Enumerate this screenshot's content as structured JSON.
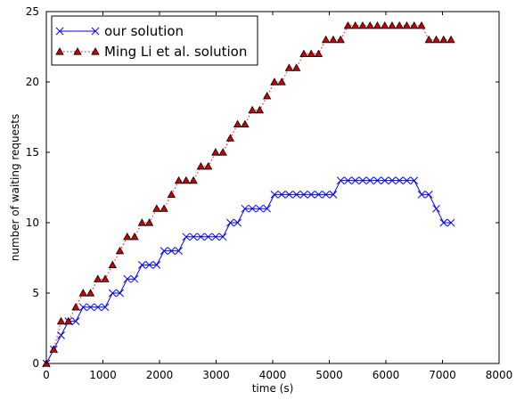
{
  "chart_data": {
    "type": "line",
    "xlabel": "time (s)",
    "ylabel": "number of waiting requests",
    "xlim": [
      0,
      8000
    ],
    "ylim": [
      0,
      25
    ],
    "xticks": [
      0,
      1000,
      2000,
      3000,
      4000,
      5000,
      6000,
      7000,
      8000
    ],
    "yticks": [
      0,
      5,
      10,
      15,
      20,
      25
    ],
    "grid": false,
    "legend_position": "top-left",
    "series": [
      {
        "name": "our solution",
        "color": "#0000ff",
        "line_style": "solid",
        "marker": "x",
        "x": [
          0,
          130,
          260,
          390,
          520,
          650,
          780,
          910,
          1040,
          1170,
          1300,
          1430,
          1560,
          1690,
          1820,
          1950,
          2080,
          2210,
          2340,
          2470,
          2600,
          2730,
          2860,
          2990,
          3120,
          3250,
          3380,
          3510,
          3640,
          3770,
          3900,
          4030,
          4160,
          4290,
          4420,
          4550,
          4680,
          4810,
          4940,
          5070,
          5200,
          5330,
          5460,
          5590,
          5720,
          5850,
          5980,
          6110,
          6240,
          6370,
          6500,
          6630,
          6760,
          6890,
          7020,
          7150
        ],
        "y": [
          0,
          1,
          2,
          3,
          3,
          4,
          4,
          4,
          4,
          5,
          5,
          6,
          6,
          7,
          7,
          7,
          8,
          8,
          8,
          9,
          9,
          9,
          9,
          9,
          9,
          10,
          10,
          11,
          11,
          11,
          11,
          12,
          12,
          12,
          12,
          12,
          12,
          12,
          12,
          12,
          13,
          13,
          13,
          13,
          13,
          13,
          13,
          13,
          13,
          13,
          13,
          12,
          12,
          11,
          10,
          10
        ]
      },
      {
        "name": "Ming Li et al. solution",
        "color": "#ff0000",
        "marker_fill": "#cc0000",
        "line_style": "dotted",
        "marker": "triangle",
        "x": [
          0,
          130,
          260,
          390,
          520,
          650,
          780,
          910,
          1040,
          1170,
          1300,
          1430,
          1560,
          1690,
          1820,
          1950,
          2080,
          2210,
          2340,
          2470,
          2600,
          2730,
          2860,
          2990,
          3120,
          3250,
          3380,
          3510,
          3640,
          3770,
          3900,
          4030,
          4160,
          4290,
          4420,
          4550,
          4680,
          4810,
          4940,
          5070,
          5200,
          5330,
          5460,
          5590,
          5720,
          5850,
          5980,
          6110,
          6240,
          6370,
          6500,
          6630,
          6760,
          6890,
          7020,
          7150
        ],
        "y": [
          0,
          1,
          3,
          3,
          4,
          5,
          5,
          6,
          6,
          7,
          8,
          9,
          9,
          10,
          10,
          11,
          11,
          12,
          13,
          13,
          13,
          14,
          14,
          15,
          15,
          16,
          17,
          17,
          18,
          18,
          19,
          20,
          20,
          21,
          21,
          22,
          22,
          22,
          23,
          23,
          23,
          24,
          24,
          24,
          24,
          24,
          24,
          24,
          24,
          24,
          24,
          24,
          23,
          23,
          23,
          23
        ]
      }
    ]
  }
}
